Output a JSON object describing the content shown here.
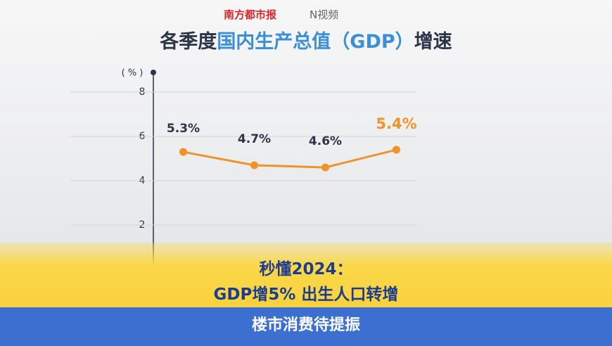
{
  "header": {
    "logo_newspaper": "南方都市报",
    "logo_video": "N视频"
  },
  "chart_data": {
    "type": "line",
    "title_parts": [
      "各季度",
      "国内生产总值",
      "（GDP）",
      "增速"
    ],
    "title_colors": [
      "#2b3548",
      "#3a8fd9",
      "#3a8fd9",
      "#2b3548"
    ],
    "y_label": "( % )",
    "categories": [
      null,
      null,
      null,
      null
    ],
    "series": [
      {
        "color": "#f0932b",
        "values": [
          5.3,
          4.7,
          4.6,
          5.4
        ],
        "value_labels": [
          "5.3%",
          "4.7%",
          "4.6%",
          "5.4%"
        ],
        "value_label_colors": [
          "#2b3548",
          "#2b3548",
          "#2b3548",
          "#f0932b"
        ]
      }
    ],
    "ylim": [
      0,
      9
    ],
    "yticks": [
      2,
      4,
      6,
      8
    ],
    "grid": true
  },
  "caption": {
    "line1": "秒懂2024：",
    "line2": "GDP增5% 出生人口转增",
    "bottom": "楼市消费待提振"
  }
}
